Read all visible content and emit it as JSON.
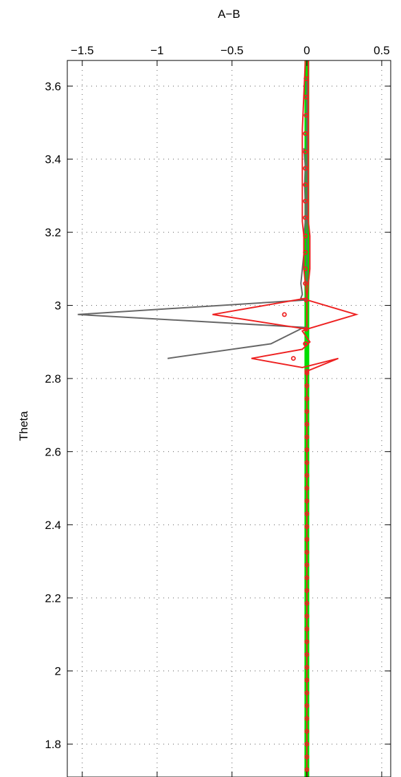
{
  "chart_data": {
    "type": "line",
    "title": "",
    "xlabel": "A−B",
    "ylabel": "Theta",
    "xlim": [
      -1.6,
      0.56
    ],
    "ylim": [
      1.71,
      3.67
    ],
    "x_axis_position": "top",
    "grid": true,
    "grid_style": "dotted",
    "xticks": [
      -1.5,
      -1,
      -0.5,
      0,
      0.5
    ],
    "xtick_labels": [
      "−1.5",
      "−1",
      "−0.5",
      "0",
      "0.5"
    ],
    "yticks": [
      1.8,
      2.0,
      2.2,
      2.4,
      2.6,
      2.8,
      3.0,
      3.2,
      3.4,
      3.6
    ],
    "ytick_labels": [
      "1.8",
      "2",
      "2.2",
      "2.4",
      "2.6",
      "2.8",
      "3",
      "3.2",
      "3.4",
      "3.6"
    ],
    "colors": {
      "green": "#00dd00",
      "gray": "#666666",
      "red": "#ee2222"
    },
    "series": [
      {
        "style": "thick-line",
        "color": "#00dd00",
        "x": [
          0,
          0
        ],
        "y": [
          1.71,
          3.67
        ]
      },
      {
        "style": "line",
        "color": "#666666",
        "x": [
          -0.02,
          -0.01,
          -0.015,
          -0.01,
          -0.01,
          -0.02,
          -0.02,
          -0.03,
          -0.04,
          -0.03,
          -0.04,
          -0.02,
          -0.01,
          0.0,
          -1.53,
          -0.02,
          -0.24,
          -0.93
        ],
        "y": [
          3.43,
          3.38,
          3.33,
          3.28,
          3.23,
          3.19,
          3.14,
          3.1,
          3.06,
          3.03,
          3.02,
          3.015,
          3.02,
          3.015,
          2.975,
          2.94,
          2.895,
          2.855
        ]
      },
      {
        "style": "line",
        "color": "#666666",
        "x": [
          0.0,
          0.0,
          0.0,
          0.0,
          0.0,
          0.0,
          0.0,
          0.0,
          0.0,
          0.0,
          0.0,
          0.0,
          0.0
        ],
        "y": [
          3.62,
          3.57,
          3.52,
          3.47,
          3.42,
          3.37,
          3.33,
          3.28,
          3.23,
          3.19,
          3.14,
          3.1,
          3.06
        ]
      },
      {
        "style": "line",
        "color": "#ee2222",
        "x": [
          -0.01,
          -0.03,
          -0.03,
          -0.03,
          -0.03,
          -0.03,
          -0.03,
          -0.02,
          -0.02,
          -0.02,
          0.0,
          -0.63,
          0.0,
          0.33,
          0.0,
          0.0,
          -0.03,
          0.02,
          -0.03,
          -0.37,
          -0.03,
          0.21,
          0.0,
          0.0
        ],
        "y": [
          3.67,
          3.48,
          3.43,
          3.38,
          3.33,
          3.28,
          3.23,
          3.19,
          3.14,
          3.1,
          3.02,
          2.975,
          2.935,
          2.975,
          3.015,
          2.935,
          2.93,
          2.9,
          2.88,
          2.855,
          2.83,
          2.855,
          2.82,
          1.71
        ]
      },
      {
        "style": "line",
        "color": "#ee2222",
        "x": [
          0.01,
          0.01,
          0.01,
          0.01,
          0.01,
          0.01,
          0.01,
          0.01,
          0.01,
          0.01,
          0.02,
          0.02,
          0.02,
          0.0
        ],
        "y": [
          3.67,
          3.62,
          3.57,
          3.52,
          3.47,
          3.42,
          3.37,
          3.33,
          3.28,
          3.23,
          3.19,
          3.14,
          3.1,
          3.02
        ]
      },
      {
        "style": "markers",
        "color": "#ee2222",
        "x": [
          -0.15,
          -0.09
        ],
        "y": [
          2.975,
          2.855
        ]
      },
      {
        "style": "markers",
        "color": "#ee2222",
        "x": [
          -0.005,
          -0.005,
          -0.005,
          -0.01,
          -0.01,
          -0.01,
          -0.01,
          -0.01,
          -0.01,
          -0.01,
          -0.01,
          -0.01,
          -0.01,
          -0.005,
          -0.005,
          -0.005,
          0.0,
          -0.01
        ],
        "y": [
          3.62,
          3.57,
          3.52,
          3.47,
          3.42,
          3.375,
          3.33,
          3.285,
          3.24,
          3.19,
          3.145,
          3.1,
          3.06,
          3.015,
          2.935,
          2.895,
          2.82,
          2.895
        ]
      },
      {
        "style": "markers",
        "color": "#ee2222",
        "x_constant": 0.0,
        "y_from": 2.815,
        "y_to": 1.715,
        "y_step": 0.035
      }
    ]
  }
}
